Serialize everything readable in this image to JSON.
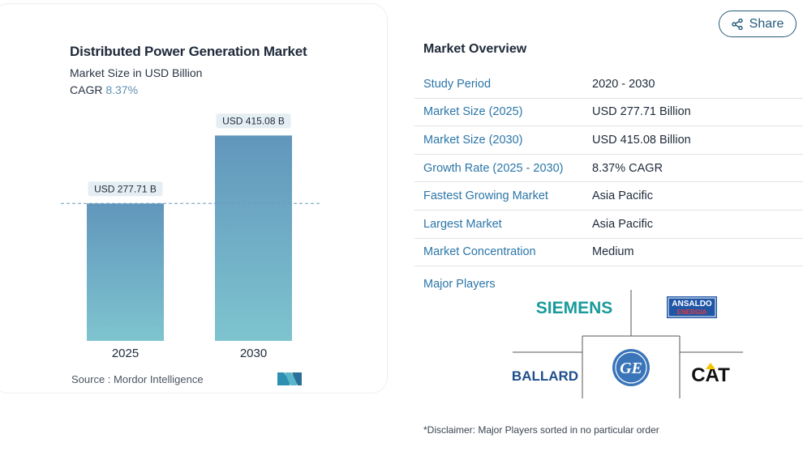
{
  "chart": {
    "title": "Distributed Power Generation Market",
    "subtitle": "Market Size in USD Billion",
    "cagr_label": "CAGR",
    "cagr_value": "8.37%",
    "source": "Source :  Mordor Intelligence"
  },
  "chart_data": {
    "type": "bar",
    "categories": [
      "2025",
      "2030"
    ],
    "values": [
      277.71,
      415.08
    ],
    "data_labels": [
      "USD 277.71 B",
      "USD 415.08 B"
    ],
    "title": "Distributed Power Generation Market",
    "ylabel": "Market Size in USD Billion",
    "ylim": [
      0,
      450
    ],
    "grid": false,
    "colors": {
      "bar_top": "#6196bc",
      "bar_bottom": "#7ec4cf",
      "label_bg": "#e4eef3",
      "reference_line": "#6b9bbd"
    }
  },
  "share": {
    "label": "Share"
  },
  "overview": {
    "title": "Market Overview",
    "rows": [
      {
        "label": "Study Period",
        "value": "2020 - 2030"
      },
      {
        "label": "Market Size (2025)",
        "value": "USD 277.71 Billion"
      },
      {
        "label": "Market Size (2030)",
        "value": "USD 415.08 Billion"
      },
      {
        "label": "Growth Rate (2025 - 2030)",
        "value": "8.37% CAGR"
      },
      {
        "label": "Fastest Growing Market",
        "value": "Asia Pacific"
      },
      {
        "label": "Largest Market",
        "value": "Asia Pacific"
      },
      {
        "label": "Market Concentration",
        "value": "Medium"
      }
    ]
  },
  "players": {
    "label": "Major Players",
    "logos": {
      "siemens": "SIEMENS",
      "ansaldo_top": "ANSALDO",
      "ansaldo_bottom": "ENERGIA",
      "ballard": "BALLARD",
      "ge": "GE",
      "cat": "CAT"
    }
  },
  "disclaimer": "*Disclaimer: Major Players sorted in no particular order",
  "colors": {
    "accent": "#2b76a8",
    "share_border": "#245a7c",
    "siemens": "#1a9a9a",
    "ge": "#3a75b9"
  }
}
